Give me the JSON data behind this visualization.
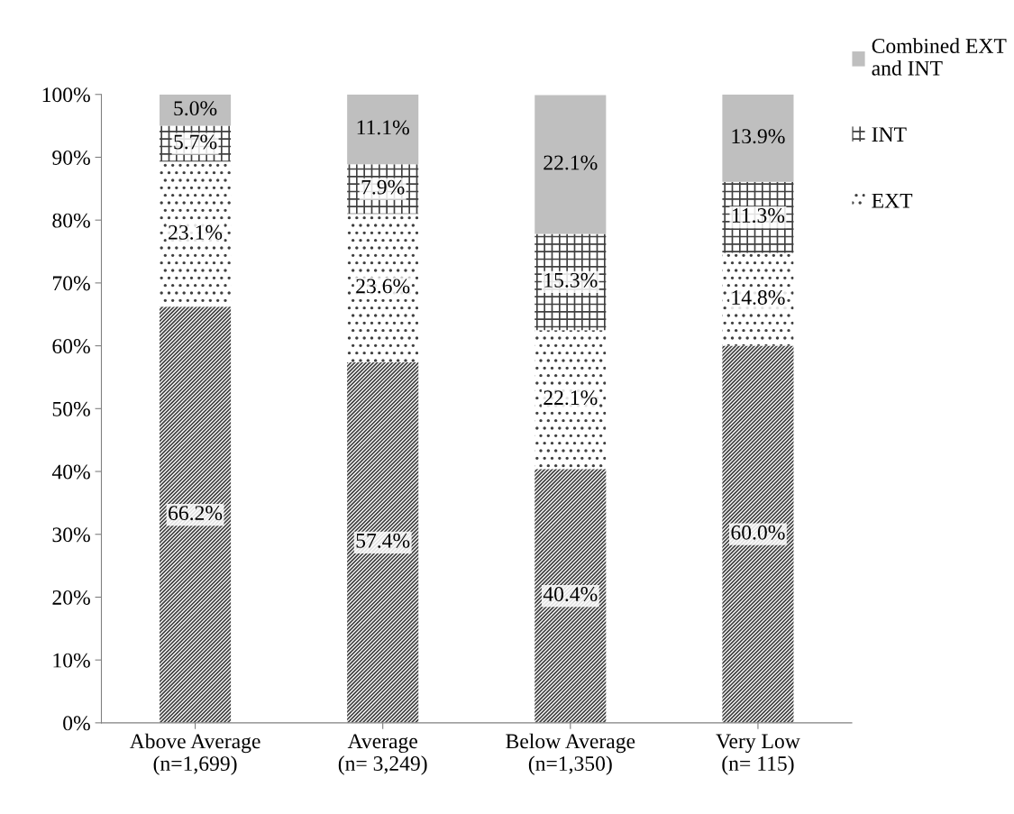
{
  "chart_data": {
    "type": "bar",
    "stacked": true,
    "categories": [
      "Above Average\n(n=1,699)",
      "Average\n(n= 3,249)",
      "Below Average\n(n=1,350)",
      "Very Low\n(n= 115)"
    ],
    "series": [
      {
        "color": "#7f7f7f",
        "values": [
          66.2,
          57.4,
          40.4,
          60.0
        ],
        "value_labels": [
          "66.2%",
          "57.4%",
          "40.4%",
          "60.0%"
        ]
      },
      {
        "name": "EXT",
        "color": "#d9d9d9",
        "values": [
          23.1,
          23.6,
          22.1,
          14.8
        ],
        "value_labels": [
          "23.1%",
          "23.6%",
          "22.1%",
          "14.8%"
        ]
      },
      {
        "name": "INT",
        "color": "#bfbfbf",
        "values": [
          5.7,
          7.9,
          15.3,
          11.3
        ],
        "value_labels": [
          "5.7%",
          "7.9%",
          "15.3%",
          "11.3%"
        ]
      },
      {
        "name": "Combined EXT and INT",
        "color": "#bfbfbf",
        "values": [
          5.0,
          11.1,
          22.1,
          13.9
        ],
        "value_labels": [
          "5.0%",
          "11.1%",
          "22.1%",
          "13.9%"
        ]
      }
    ],
    "ylim": [
      0,
      100
    ],
    "yticks": [
      {
        "value": 0,
        "label": "0%"
      },
      {
        "value": 10,
        "label": "10%"
      },
      {
        "value": 20,
        "label": "20%"
      },
      {
        "value": 30,
        "label": "30%"
      },
      {
        "value": 40,
        "label": "40%"
      },
      {
        "value": 50,
        "label": "50%"
      },
      {
        "value": 60,
        "label": "60%"
      },
      {
        "value": 70,
        "label": "70%"
      },
      {
        "value": 80,
        "label": "80%"
      },
      {
        "value": 90,
        "label": "90%"
      },
      {
        "value": 100,
        "label": "100%"
      }
    ],
    "legend": "right",
    "grid": false
  }
}
